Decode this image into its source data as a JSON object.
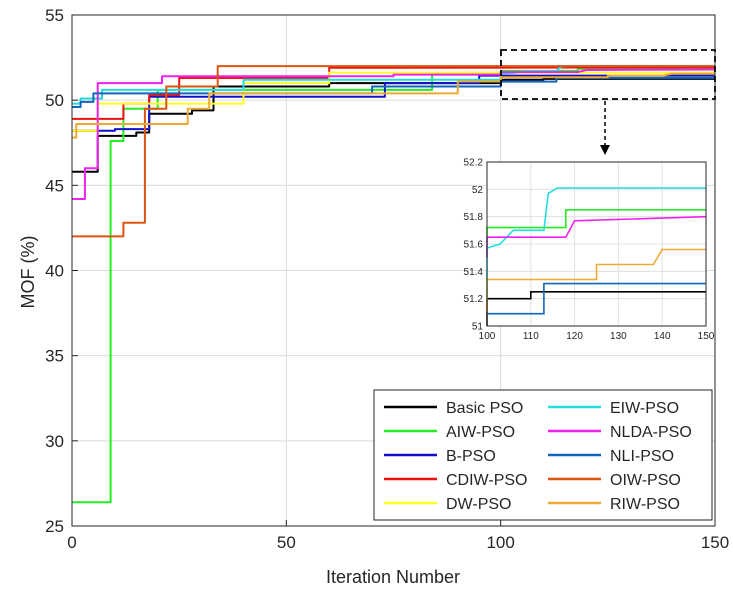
{
  "chart_data": {
    "type": "line",
    "title": "",
    "xlabel": "Iteration Number",
    "ylabel": "MOF (%)",
    "xlim": [
      0,
      150
    ],
    "ylim": [
      25,
      55
    ],
    "xticks": [
      "0",
      "50",
      "100",
      "150"
    ],
    "yticks": [
      "25",
      "30",
      "35",
      "40",
      "45",
      "50",
      "55"
    ],
    "grid": true,
    "legend_placement": "bottom-right",
    "series": [
      {
        "name": "Basic PSO",
        "color": "#000000",
        "points": [
          [
            0,
            45.8
          ],
          [
            6,
            45.8
          ],
          [
            6,
            47.9
          ],
          [
            15,
            47.9
          ],
          [
            15,
            48.1
          ],
          [
            18,
            48.1
          ],
          [
            18,
            49.2
          ],
          [
            28,
            49.2
          ],
          [
            28,
            49.4
          ],
          [
            33,
            49.4
          ],
          [
            33,
            50.8
          ],
          [
            60,
            50.8
          ],
          [
            60,
            51.0
          ],
          [
            100,
            51.0
          ],
          [
            100,
            51.2
          ],
          [
            110,
            51.2
          ],
          [
            110,
            51.25
          ],
          [
            150,
            51.25
          ]
        ]
      },
      {
        "name": "AIW-PSO",
        "color": "#22ee22",
        "points": [
          [
            0,
            26.4
          ],
          [
            9,
            26.4
          ],
          [
            9,
            47.6
          ],
          [
            12,
            47.6
          ],
          [
            12,
            49.5
          ],
          [
            20,
            49.5
          ],
          [
            20,
            50.6
          ],
          [
            84,
            50.6
          ],
          [
            84,
            51.5
          ],
          [
            100,
            51.5
          ],
          [
            100,
            51.72
          ],
          [
            118,
            51.72
          ],
          [
            118,
            51.85
          ],
          [
            150,
            51.85
          ]
        ]
      },
      {
        "name": "B-PSO",
        "color": "#1111cc",
        "points": [
          [
            0,
            48.2
          ],
          [
            10,
            48.2
          ],
          [
            10,
            48.3
          ],
          [
            18,
            48.3
          ],
          [
            18,
            50.2
          ],
          [
            73,
            50.2
          ],
          [
            73,
            51.0
          ],
          [
            95,
            51.0
          ],
          [
            95,
            51.44
          ],
          [
            150,
            51.44
          ]
        ]
      },
      {
        "name": "CDIW-PSO",
        "color": "#ee1111",
        "points": [
          [
            0,
            48.9
          ],
          [
            12,
            48.9
          ],
          [
            12,
            49.8
          ],
          [
            18,
            49.8
          ],
          [
            18,
            50.3
          ],
          [
            25,
            50.3
          ],
          [
            25,
            51.3
          ],
          [
            60,
            51.3
          ],
          [
            60,
            51.9
          ],
          [
            150,
            51.93
          ]
        ]
      },
      {
        "name": "DW-PSO",
        "color": "#ffff22",
        "points": [
          [
            0,
            48.2
          ],
          [
            6,
            48.2
          ],
          [
            6,
            49.8
          ],
          [
            40,
            49.8
          ],
          [
            40,
            51.0
          ],
          [
            60,
            51.0
          ],
          [
            60,
            51.62
          ],
          [
            150,
            51.62
          ]
        ]
      },
      {
        "name": "EIW-PSO",
        "color": "#22dddd",
        "points": [
          [
            0,
            49.8
          ],
          [
            2,
            49.8
          ],
          [
            2,
            50.1
          ],
          [
            7,
            50.1
          ],
          [
            7,
            50.6
          ],
          [
            40,
            50.6
          ],
          [
            40,
            51.2
          ],
          [
            100,
            51.2
          ],
          [
            100,
            51.57
          ],
          [
            103,
            51.6
          ],
          [
            106,
            51.7
          ],
          [
            113,
            51.7
          ],
          [
            114,
            51.97
          ],
          [
            116,
            52.01
          ],
          [
            150,
            52.01
          ]
        ]
      },
      {
        "name": "NLDA-PSO",
        "color": "#ee22ee",
        "points": [
          [
            0,
            44.2
          ],
          [
            3,
            44.2
          ],
          [
            3,
            46.0
          ],
          [
            6,
            46.0
          ],
          [
            6,
            51.0
          ],
          [
            21,
            51.0
          ],
          [
            21,
            51.4
          ],
          [
            75,
            51.4
          ],
          [
            75,
            51.5
          ],
          [
            100,
            51.5
          ],
          [
            100,
            51.65
          ],
          [
            118,
            51.65
          ],
          [
            120,
            51.77
          ],
          [
            150,
            51.8
          ]
        ]
      },
      {
        "name": "NLI-PSO",
        "color": "#1166bb",
        "points": [
          [
            0,
            49.6
          ],
          [
            2,
            49.6
          ],
          [
            2,
            49.9
          ],
          [
            5,
            49.9
          ],
          [
            5,
            50.4
          ],
          [
            70,
            50.4
          ],
          [
            70,
            50.8
          ],
          [
            100,
            50.8
          ],
          [
            100,
            51.09
          ],
          [
            113,
            51.09
          ],
          [
            113,
            51.31
          ],
          [
            150,
            51.31
          ]
        ]
      },
      {
        "name": "OIW-PSO",
        "color": "#dd5511",
        "points": [
          [
            0,
            42.0
          ],
          [
            12,
            42.0
          ],
          [
            12,
            42.8
          ],
          [
            17,
            42.8
          ],
          [
            17,
            49.5
          ],
          [
            22,
            49.5
          ],
          [
            22,
            50.8
          ],
          [
            34,
            50.8
          ],
          [
            34,
            52.0
          ],
          [
            150,
            52.0
          ]
        ]
      },
      {
        "name": "RIW-PSO",
        "color": "#eeaa33",
        "points": [
          [
            0,
            47.8
          ],
          [
            1,
            47.8
          ],
          [
            1,
            48.6
          ],
          [
            27,
            48.6
          ],
          [
            27,
            49.5
          ],
          [
            32,
            49.5
          ],
          [
            32,
            50.4
          ],
          [
            90,
            50.4
          ],
          [
            90,
            51.1
          ],
          [
            100,
            51.1
          ],
          [
            100,
            51.34
          ],
          [
            125,
            51.34
          ],
          [
            125,
            51.45
          ],
          [
            138,
            51.45
          ],
          [
            140,
            51.56
          ],
          [
            150,
            51.56
          ]
        ]
      }
    ],
    "inset": {
      "xlim": [
        100,
        150
      ],
      "ylim": [
        51,
        52.2
      ],
      "xticks": [
        "100",
        "110",
        "120",
        "130",
        "140",
        "150"
      ],
      "yticks": [
        "51",
        "51.2",
        "51.4",
        "51.6",
        "51.8",
        "52",
        "52.2"
      ]
    }
  }
}
